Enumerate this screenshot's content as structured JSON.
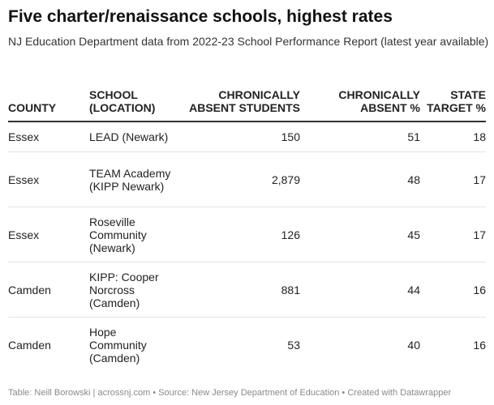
{
  "header": {
    "title": "Five charter/renaissance schools, highest rates",
    "subtitle": "NJ Education Department data from 2022-23 School Performance Report (latest year available)"
  },
  "chart_data": {
    "type": "table",
    "columns": [
      "COUNTY",
      "SCHOOL (LOCATION)",
      "CHRONICALLY ABSENT STUDENTS",
      "CHRONICALLY ABSENT %",
      "STATE TARGET %"
    ],
    "rows": [
      [
        "Essex",
        "LEAD (Newark)",
        "150",
        "51",
        "18"
      ],
      [
        "Essex",
        "TEAM Academy (KIPP Newark)",
        "2,879",
        "48",
        "17"
      ],
      [
        "Essex",
        "Roseville Community (Newark)",
        "126",
        "45",
        "17"
      ],
      [
        "Camden",
        "KIPP: Cooper Norcross (Camden)",
        "881",
        "44",
        "16"
      ],
      [
        "Camden",
        "Hope Community (Camden)",
        "53",
        "40",
        "16"
      ]
    ]
  },
  "footer": {
    "text": "Table: Neill Borowski | acrossnj.com • Source: New Jersey Department of Education • Created with Datawrapper"
  }
}
